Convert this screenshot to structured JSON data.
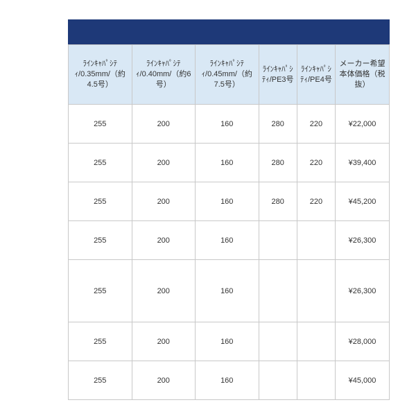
{
  "colors": {
    "header_bar": "#1e3978",
    "th_bg": "#d9e8f5",
    "border": "#c8c8c8",
    "text": "#333333",
    "bg": "#ffffff"
  },
  "table": {
    "headers": [
      "ﾗｲﾝｷｬﾊﾟｼﾃｨ/0.35mm/（約4.5号）",
      "ﾗｲﾝｷｬﾊﾟｼﾃｨ/0.40mm/（約6号）",
      "ﾗｲﾝｷｬﾊﾟｼﾃｨ/0.45mm/（約7.5号）",
      "ﾗｲﾝｷｬﾊﾟｼﾃｨ/PE3号",
      "ﾗｲﾝｷｬﾊﾟｼﾃｨ/PE4号",
      "メーカー希望本体価格（税抜）"
    ],
    "rows": [
      {
        "cells": [
          "255",
          "200",
          "160",
          "280",
          "220",
          "¥22,000"
        ],
        "tall": false
      },
      {
        "cells": [
          "255",
          "200",
          "160",
          "280",
          "220",
          "¥39,400"
        ],
        "tall": false
      },
      {
        "cells": [
          "255",
          "200",
          "160",
          "280",
          "220",
          "¥45,200"
        ],
        "tall": false
      },
      {
        "cells": [
          "255",
          "200",
          "160",
          "",
          "",
          "¥26,300"
        ],
        "tall": false
      },
      {
        "cells": [
          "255",
          "200",
          "160",
          "",
          "",
          "¥26,300"
        ],
        "tall": true
      },
      {
        "cells": [
          "255",
          "200",
          "160",
          "",
          "",
          "¥28,000"
        ],
        "tall": false
      },
      {
        "cells": [
          "255",
          "200",
          "160",
          "",
          "",
          "¥45,000"
        ],
        "tall": false
      }
    ]
  }
}
